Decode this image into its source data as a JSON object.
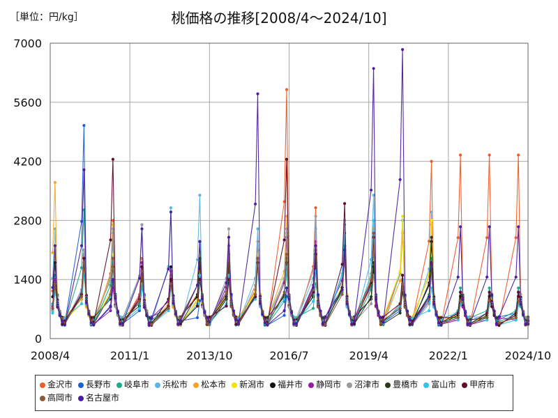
{
  "chart_data": {
    "type": "line",
    "unit_label": "［単位：円/kg］",
    "title": "桃価格の推移[2008/4～2024/10]",
    "x_range": [
      "2008-04",
      "2024-10"
    ],
    "ylim": [
      0,
      7000
    ],
    "y_ticks": [
      "0",
      "1400",
      "2800",
      "4200",
      "5600",
      "7000"
    ],
    "x_ticks": [
      {
        "date": "2008-04",
        "label": "2008/4"
      },
      {
        "date": "2011-01",
        "label": "2011/1"
      },
      {
        "date": "2013-10",
        "label": "2013/10"
      },
      {
        "date": "2016-07",
        "label": "2016/7"
      },
      {
        "date": "2019-04",
        "label": "2019/4"
      },
      {
        "date": "2022-01",
        "label": "2022/1"
      },
      {
        "date": "2024-10",
        "label": "2024/10"
      }
    ],
    "grid": true,
    "legend_position": "bottom",
    "series": [
      {
        "name": "金沢市",
        "color": "#f05a28",
        "peaks": [
          2050,
          1950,
          2800,
          1900,
          1400,
          1900,
          1900,
          2100,
          5900,
          3100,
          2700,
          2200,
          2800,
          4200,
          4350
        ]
      },
      {
        "name": "長野市",
        "color": "#1f5fd6",
        "peaks": [
          1200,
          5050,
          1350,
          1200,
          1300,
          900,
          2000,
          1800,
          1000,
          1850,
          2200,
          2300,
          1200,
          1600,
          1100
        ]
      },
      {
        "name": "岐阜市",
        "color": "#1aab8a",
        "peaks": [
          1500,
          3050,
          2300,
          1500,
          1300,
          1400,
          1700,
          1800,
          1600,
          1300,
          2000,
          2100,
          1500,
          1900,
          1200
        ]
      },
      {
        "name": "浜松市",
        "color": "#5ab4e6",
        "peaks": [
          2600,
          2000,
          2500,
          2700,
          3100,
          3400,
          2200,
          2600,
          2500,
          2600,
          2800,
          3400,
          2800,
          3000,
          1100
        ]
      },
      {
        "name": "松本市",
        "color": "#f5a623",
        "peaks": [
          3700,
          1700,
          2700,
          1800,
          1500,
          1700,
          1800,
          2000,
          2900,
          2000,
          2200,
          2600,
          2500,
          2700,
          1000
        ]
      },
      {
        "name": "新潟市",
        "color": "#f2e600",
        "peaks": [
          2200,
          1500,
          2000,
          1800,
          1300,
          1600,
          1800,
          2000,
          2400,
          2000,
          2300,
          2400,
          2900,
          2800,
          1000
        ]
      },
      {
        "name": "福井市",
        "color": "#111111",
        "peaks": [
          1800,
          1900,
          1900,
          1700,
          1700,
          1800,
          1800,
          1900,
          1900,
          2000,
          2200,
          1700,
          1300,
          2300,
          1000
        ]
      },
      {
        "name": "静岡市",
        "color": "#9a1aa8",
        "peaks": [
          1400,
          2100,
          1200,
          1800,
          1600,
          2300,
          2200,
          1800,
          2400,
          2300,
          2500,
          2500,
          1400,
          1800,
          800
        ]
      },
      {
        "name": "沼津市",
        "color": "#9a9a9a",
        "peaks": [
          1200,
          2100,
          2600,
          2700,
          1300,
          2300,
          2600,
          2300,
          2600,
          2900,
          2100,
          1500,
          1500,
          1500,
          900
        ]
      },
      {
        "name": "豊橋市",
        "color": "#2b3a1a",
        "peaks": [
          1300,
          1900,
          1700,
          1400,
          1400,
          1900,
          1700,
          1900,
          1800,
          1800,
          2100,
          1800,
          1100,
          2400,
          900
        ]
      },
      {
        "name": "富山市",
        "color": "#2fc4e8",
        "peaks": [
          1100,
          1500,
          1800,
          1300,
          1200,
          1500,
          1500,
          1700,
          1700,
          1600,
          2700,
          2800,
          1400,
          1200,
          800
        ]
      },
      {
        "name": "甲府市",
        "color": "#5e0b2e",
        "peaks": [
          1300,
          1900,
          4250,
          1700,
          1400,
          1400,
          1400,
          1800,
          4250,
          2000,
          3200,
          2400,
          1500,
          1800,
          1100
        ]
      },
      {
        "name": "高岡市",
        "color": "#8a5a3c",
        "peaks": [
          1300,
          1800,
          1900,
          1600,
          1300,
          2300,
          2000,
          1900,
          2000,
          2100,
          1900,
          2500,
          1300,
          1700,
          900
        ]
      },
      {
        "name": "名古屋市",
        "color": "#4a1f9e",
        "peaks": [
          2200,
          4000,
          1400,
          2600,
          3000,
          2300,
          2400,
          5800,
          1200,
          2200,
          2100,
          6400,
          6850,
          1800,
          2650
        ]
      }
    ]
  }
}
